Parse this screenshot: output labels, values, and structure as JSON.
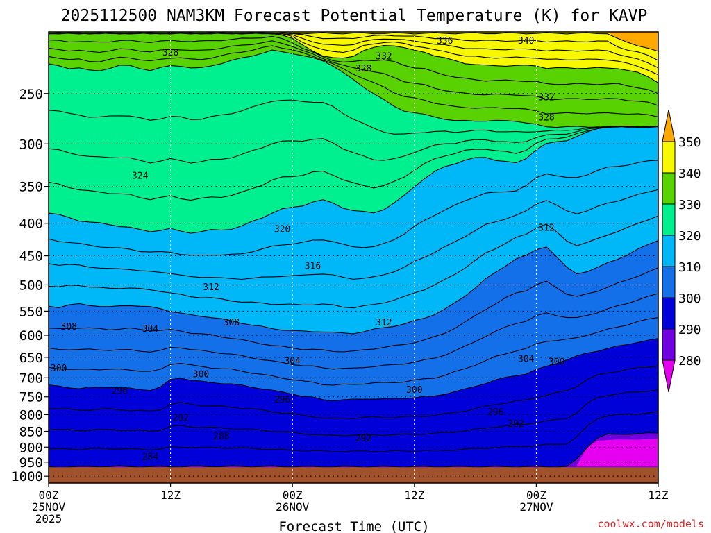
{
  "chart_data": {
    "type": "heatmap",
    "title": "2025112500 NAM3KM Forecast Potential Temperature (K) for KAVP",
    "xlabel": "Forecast Time (UTC)",
    "ylabel": "",
    "credit": "coolwx.com/models",
    "x_ticks": [
      {
        "line1": "00Z",
        "line2": "25NOV",
        "line3": "2025",
        "hour": 0
      },
      {
        "line1": "12Z",
        "line2": "",
        "line3": "",
        "hour": 12
      },
      {
        "line1": "00Z",
        "line2": "26NOV",
        "line3": "",
        "hour": 24
      },
      {
        "line1": "12Z",
        "line2": "",
        "line3": "",
        "hour": 36
      },
      {
        "line1": "00Z",
        "line2": "27NOV",
        "line3": "",
        "hour": 48
      },
      {
        "line1": "12Z",
        "line2": "",
        "line3": "",
        "hour": 60
      }
    ],
    "xlim": [
      0,
      60
    ],
    "y_ticks": [
      "250",
      "300",
      "350",
      "400",
      "450",
      "500",
      "550",
      "600",
      "650",
      "700",
      "750",
      "800",
      "850",
      "900",
      "950",
      "1000"
    ],
    "ylim_hpa": [
      200,
      1025
    ],
    "colorbar": {
      "levels": [
        "350",
        "340",
        "330",
        "320",
        "310",
        "300",
        "290",
        "280"
      ],
      "colors": [
        "#ffa800",
        "#f8f800",
        "#58d200",
        "#00f090",
        "#00b8f8",
        "#1470e8",
        "#0000d8",
        "#7000e0",
        "#e600f0"
      ]
    },
    "terrain_color": "#a0522d",
    "series": [
      {
        "name": "theta_280_290_boundary_hpa",
        "values": [
          968,
          968,
          966,
          966,
          966,
          965,
          965,
          965,
          966,
          966,
          966,
          966,
          966,
          966,
          965,
          965,
          965,
          965,
          965,
          965,
          965,
          965,
          965,
          966,
          966,
          966,
          966,
          966,
          966,
          966,
          966,
          966,
          966,
          966,
          966,
          966,
          966,
          966,
          966,
          966,
          966,
          966,
          966,
          966,
          966,
          966,
          966,
          966,
          966,
          966,
          966,
          966,
          940,
          900,
          870,
          860,
          860,
          858,
          858,
          856,
          855
        ]
      },
      {
        "name": "theta_290_300_boundary_hpa",
        "values": [
          720,
          722,
          725,
          728,
          726,
          725,
          724,
          726,
          728,
          730,
          732,
          725,
          705,
          700,
          706,
          710,
          712,
          714,
          716,
          720,
          724,
          728,
          733,
          738,
          742,
          748,
          752,
          758,
          760,
          758,
          758,
          756,
          755,
          756,
          756,
          754,
          752,
          750,
          748,
          742,
          736,
          730,
          722,
          714,
          706,
          700,
          694,
          690,
          680,
          672,
          664,
          656,
          648,
          640,
          635,
          630,
          625,
          620,
          615,
          612,
          608
        ]
      },
      {
        "name": "theta_300_310_boundary_hpa",
        "values": [
          540,
          542,
          538,
          536,
          538,
          540,
          542,
          540,
          538,
          540,
          542,
          545,
          550,
          554,
          558,
          560,
          562,
          566,
          570,
          574,
          578,
          582,
          586,
          588,
          590,
          592,
          592,
          592,
          594,
          596,
          596,
          592,
          588,
          584,
          580,
          576,
          570,
          564,
          556,
          546,
          534,
          520,
          505,
          490,
          478,
          466,
          455,
          450,
          440,
          435,
          452,
          470,
          480,
          476,
          470,
          462,
          455,
          448,
          440,
          432,
          425
        ]
      },
      {
        "name": "theta_310_320_boundary_hpa",
        "values": [
          385,
          388,
          392,
          396,
          398,
          400,
          402,
          404,
          406,
          410,
          412,
          410,
          408,
          412,
          414,
          412,
          410,
          410,
          408,
          404,
          398,
          392,
          385,
          380,
          378,
          375,
          370,
          368,
          372,
          378,
          382,
          384,
          385,
          380,
          372,
          362,
          350,
          340,
          332,
          326,
          322,
          318,
          316,
          315,
          318,
          320,
          322,
          316,
          306,
          300,
          298,
          296,
          292,
          288,
          284,
          282,
          282,
          282,
          282,
          282,
          282
        ]
      },
      {
        "name": "theta_320_330_boundary_hpa",
        "values": [
          225,
          226,
          228,
          228,
          230,
          230,
          228,
          226,
          226,
          228,
          230,
          228,
          226,
          226,
          228,
          228,
          226,
          224,
          222,
          220,
          218,
          216,
          214,
          215,
          216,
          218,
          220,
          222,
          226,
          232,
          238,
          244,
          250,
          256,
          262,
          266,
          268,
          270,
          272,
          274,
          276,
          276,
          276,
          276,
          276,
          276,
          276,
          278,
          280,
          282,
          282,
          282,
          282,
          282,
          282,
          282,
          282,
          282,
          282,
          282,
          282
        ]
      },
      {
        "name": "theta_330_340_boundary_hpa",
        "values": [
          200,
          200,
          200,
          200,
          200,
          200,
          200,
          200,
          200,
          200,
          200,
          200,
          200,
          200,
          200,
          200,
          200,
          200,
          200,
          200,
          200,
          200,
          200,
          202,
          205,
          210,
          214,
          218,
          220,
          220,
          218,
          214,
          212,
          210,
          210,
          212,
          214,
          215,
          218,
          220,
          222,
          224,
          225,
          226,
          226,
          226,
          226,
          226,
          226,
          228,
          228,
          228,
          228,
          228,
          228,
          228,
          228,
          230,
          232,
          235,
          240
        ]
      },
      {
        "name": "theta_340_350_boundary_hpa",
        "values": [
          200,
          200,
          200,
          200,
          200,
          200,
          200,
          200,
          200,
          200,
          200,
          200,
          200,
          200,
          200,
          200,
          200,
          200,
          200,
          200,
          200,
          200,
          200,
          200,
          200,
          200,
          200,
          200,
          200,
          200,
          200,
          200,
          200,
          200,
          200,
          200,
          200,
          200,
          200,
          200,
          200,
          200,
          200,
          200,
          200,
          200,
          200,
          200,
          200,
          200,
          200,
          200,
          200,
          200,
          200,
          200,
          205,
          208,
          210,
          212,
          215
        ]
      }
    ],
    "contour_labels": [
      {
        "text": "328",
        "hour": 12,
        "hpa": 215
      },
      {
        "text": "336",
        "hour": 39,
        "hpa": 206
      },
      {
        "text": "340",
        "hour": 47,
        "hpa": 206
      },
      {
        "text": "332",
        "hour": 33,
        "hpa": 218
      },
      {
        "text": "328",
        "hour": 31,
        "hpa": 228
      },
      {
        "text": "332",
        "hour": 49,
        "hpa": 253
      },
      {
        "text": "328",
        "hour": 49,
        "hpa": 272
      },
      {
        "text": "324",
        "hour": 9,
        "hpa": 336
      },
      {
        "text": "320",
        "hour": 23,
        "hpa": 408
      },
      {
        "text": "312",
        "hour": 49,
        "hpa": 406
      },
      {
        "text": "316",
        "hour": 26,
        "hpa": 466
      },
      {
        "text": "312",
        "hour": 16,
        "hpa": 503
      },
      {
        "text": "308",
        "hour": 2,
        "hpa": 581
      },
      {
        "text": "308",
        "hour": 18,
        "hpa": 572
      },
      {
        "text": "304",
        "hour": 10,
        "hpa": 585
      },
      {
        "text": "312",
        "hour": 33,
        "hpa": 572
      },
      {
        "text": "304",
        "hour": 24,
        "hpa": 658
      },
      {
        "text": "304",
        "hour": 47,
        "hpa": 653
      },
      {
        "text": "300",
        "hour": 1,
        "hpa": 675
      },
      {
        "text": "300",
        "hour": 15,
        "hpa": 690
      },
      {
        "text": "300",
        "hour": 50,
        "hpa": 659
      },
      {
        "text": "300",
        "hour": 36,
        "hpa": 730
      },
      {
        "text": "296",
        "hour": 7,
        "hpa": 733
      },
      {
        "text": "296",
        "hour": 23,
        "hpa": 756
      },
      {
        "text": "296",
        "hour": 44,
        "hpa": 791
      },
      {
        "text": "292",
        "hour": 13,
        "hpa": 808
      },
      {
        "text": "292",
        "hour": 46,
        "hpa": 826
      },
      {
        "text": "292",
        "hour": 31,
        "hpa": 870
      },
      {
        "text": "288",
        "hour": 17,
        "hpa": 864
      },
      {
        "text": "284",
        "hour": 10,
        "hpa": 930
      }
    ]
  }
}
